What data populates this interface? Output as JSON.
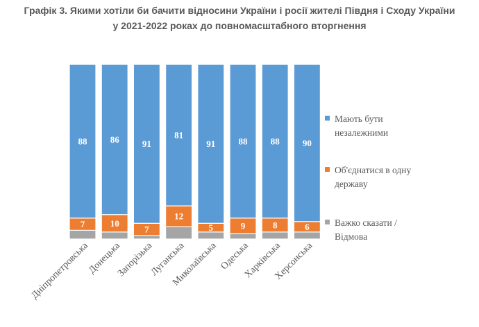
{
  "chart_data": {
    "type": "bar",
    "stacked": true,
    "title_lines": [
      "Графік 3. Якими хотіли би бачити відносини України і росії жителі Півдня і Сходу України",
      "у 2021-2022 роках до повномасштабного вторгнення"
    ],
    "categories": [
      "Дніпропетровська",
      "Донецька",
      "Запорізька",
      "Луганська",
      "Миколаївська",
      "Одеська",
      "Харківська",
      "Херсонська"
    ],
    "series": [
      {
        "name": "Важко сказати / Відмова",
        "color": "#a5a5a5",
        "values": [
          5,
          4,
          2,
          7,
          4,
          3,
          4,
          4
        ],
        "show_labels": false
      },
      {
        "name": "Об'єднатися в одну державу",
        "color": "#ed7d31",
        "values": [
          7,
          10,
          7,
          12,
          5,
          9,
          8,
          6
        ],
        "show_labels": true
      },
      {
        "name": "Мають бути незалежними",
        "color": "#5b9bd5",
        "values": [
          88,
          86,
          91,
          81,
          91,
          88,
          88,
          90
        ],
        "show_labels": true
      }
    ],
    "legend_order": [
      2,
      1,
      0
    ],
    "legend_labels": [
      [
        "Мають бути",
        "незалежними"
      ],
      [
        "Об'єднатися в одну",
        "державу"
      ],
      [
        "Важко сказати /",
        "Відмова"
      ]
    ],
    "legend_position": "right",
    "ylim": [
      0,
      100
    ],
    "grid": false
  }
}
